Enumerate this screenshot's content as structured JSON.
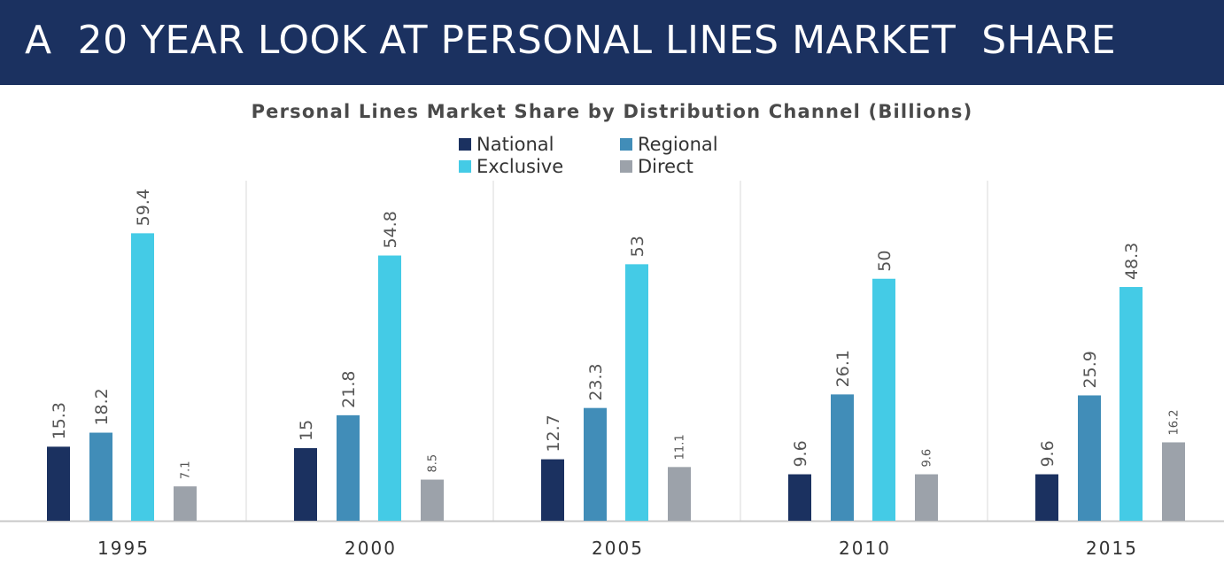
{
  "header": {
    "title": "A  20 YEAR LOOK AT PERSONAL LINES MARKET  SHARE"
  },
  "chart_data": {
    "type": "bar",
    "title": "Personal Lines Market Share by Distribution Channel (Billions)",
    "xlabel": "",
    "ylabel": "",
    "ylim": [
      0,
      66
    ],
    "grid": false,
    "legend_position": "top-center",
    "categories": [
      "1995",
      "2000",
      "2005",
      "2010",
      "2015"
    ],
    "series": [
      {
        "name": "National",
        "color": "#1b3160",
        "values": [
          15.3,
          15,
          12.7,
          9.6,
          9.6
        ],
        "labels": [
          "15.3",
          "15",
          "12.7",
          "9.6",
          "9.6"
        ]
      },
      {
        "name": "Regional",
        "color": "#418db8",
        "values": [
          18.2,
          21.8,
          23.3,
          26.1,
          25.9
        ],
        "labels": [
          "18.2",
          "21.8",
          "23.3",
          "26.1",
          "25.9"
        ]
      },
      {
        "name": "Exclusive",
        "color": "#44cbe6",
        "values": [
          59.4,
          54.8,
          53,
          50,
          48.3
        ],
        "labels": [
          "59.4",
          "54.8",
          "53",
          "50",
          "48.3"
        ]
      },
      {
        "name": "Direct",
        "color": "#9ca2aa",
        "values": [
          7.1,
          8.5,
          11.1,
          9.6,
          16.2
        ],
        "labels": [
          "7.1",
          "8.5",
          "11.1",
          "9.6",
          "16.2"
        ]
      }
    ]
  }
}
